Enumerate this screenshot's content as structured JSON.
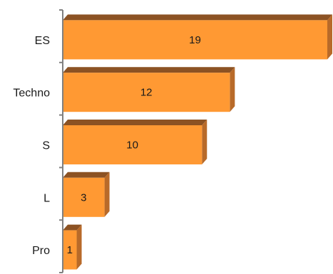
{
  "chart_data": {
    "type": "bar",
    "orientation": "horizontal",
    "style": "3d",
    "categories": [
      "ES",
      "Techno",
      "S",
      "L",
      "Pro"
    ],
    "values": [
      19,
      12,
      10,
      3,
      1
    ],
    "xlim": [
      0,
      19
    ],
    "grid": false,
    "legend": "none",
    "colors": {
      "front": "#FF9933",
      "top": "#8C5223",
      "side": "#B86A29",
      "axis": "#808080"
    }
  }
}
